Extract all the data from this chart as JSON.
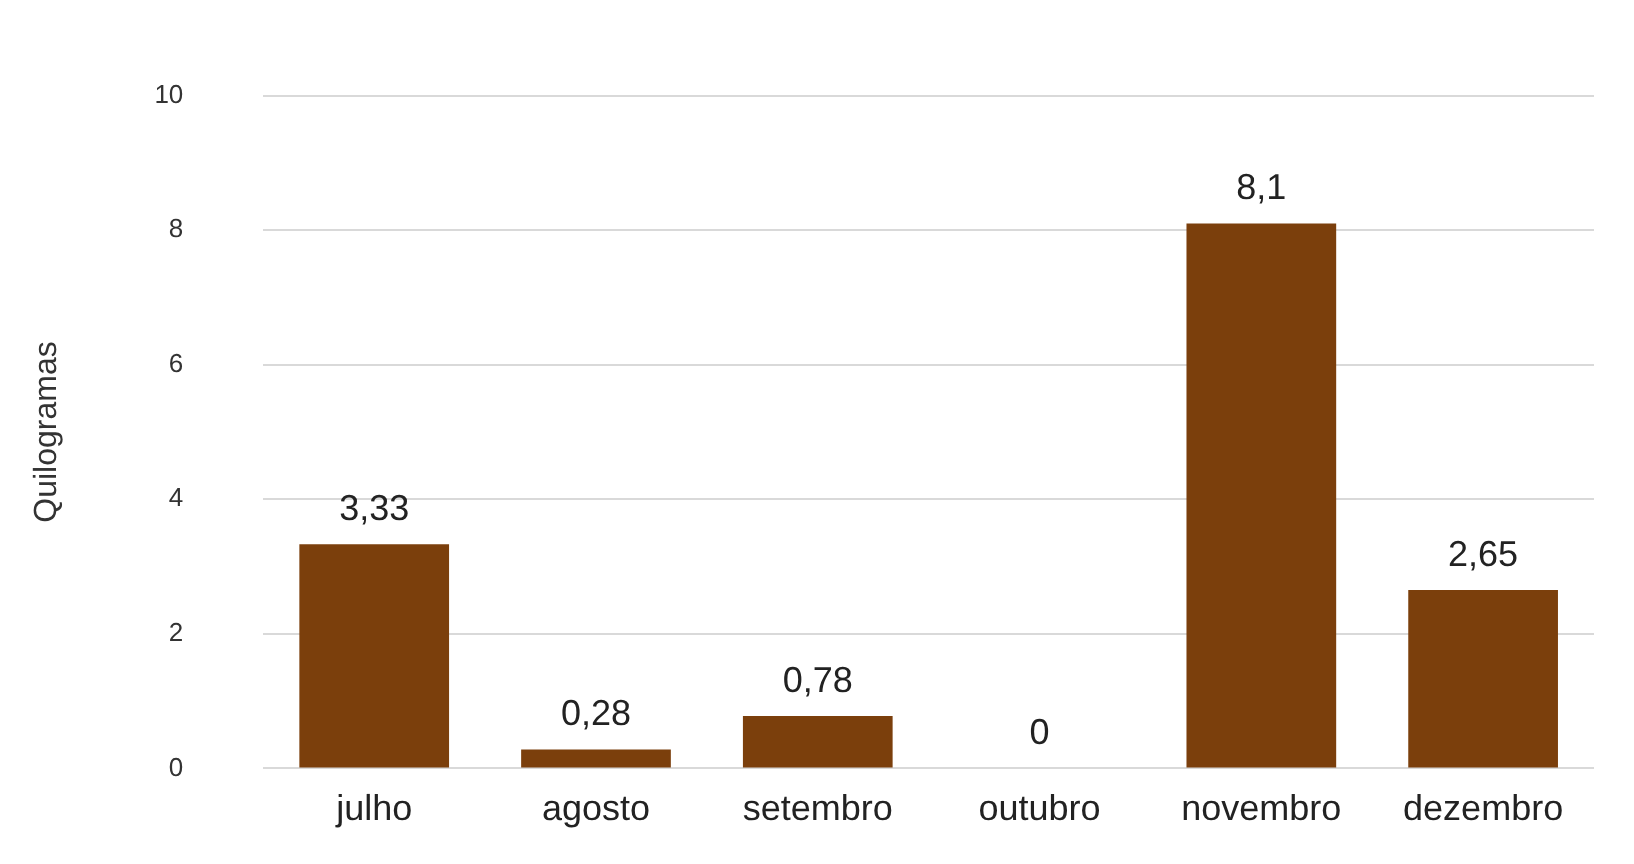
{
  "chart_data": {
    "type": "bar",
    "ylabel": "Quilogramas",
    "categories": [
      "julho",
      "agosto",
      "setembro",
      "outubro",
      "novembro",
      "dezembro"
    ],
    "values": [
      3.33,
      0.28,
      0.78,
      0,
      8.1,
      2.65
    ],
    "value_labels": [
      "3,33",
      "0,28",
      "0,78",
      "0",
      "8,1",
      "2,65"
    ],
    "color": "#7b3f0c",
    "ylim": [
      0,
      10
    ],
    "yticks": [
      0,
      2,
      4,
      6,
      8,
      10
    ],
    "grid": "y",
    "legend": false
  }
}
